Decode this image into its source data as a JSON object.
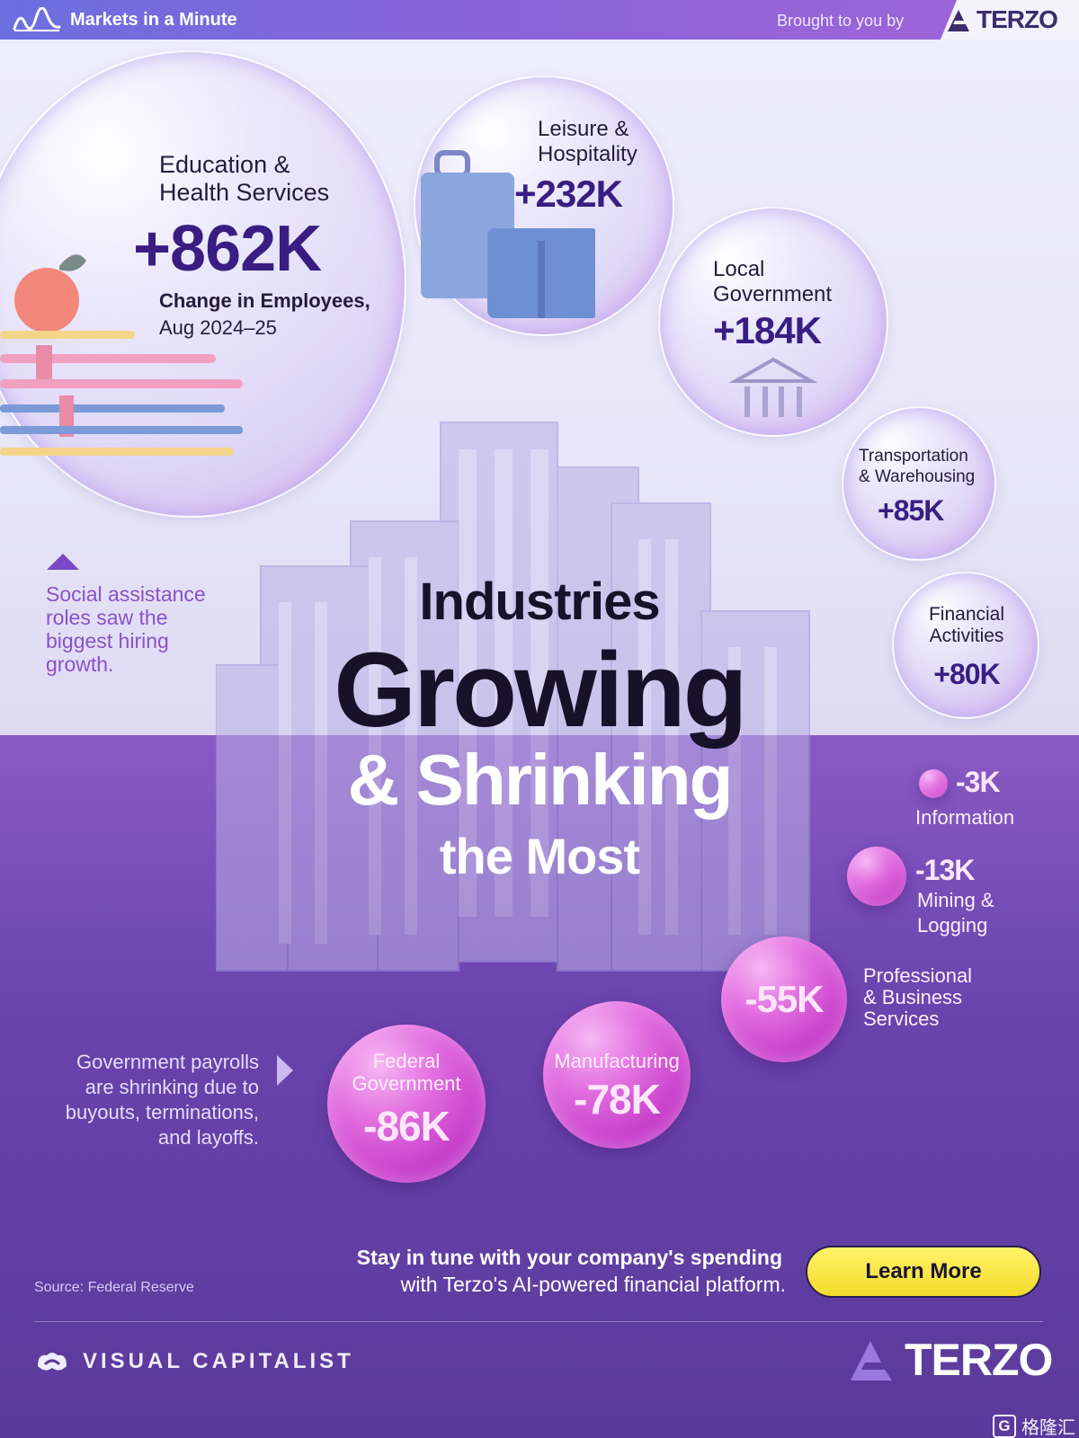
{
  "header": {
    "brand_label": "Markets in a Minute",
    "sponsor_label": "Brought to you by",
    "sponsor_name": "TERZO"
  },
  "title": {
    "line1": "Industries",
    "line2": "Growing",
    "line3": "& Shrinking",
    "line4": "the Most"
  },
  "legend_text": {
    "change_label": "Change in Employees,",
    "period": "Aug 2024–25"
  },
  "notes": {
    "social_assistance": [
      "Social assistance",
      "roles saw the",
      "biggest hiring",
      "growth."
    ],
    "government_payrolls": [
      "Government payrolls",
      "are shrinking due to",
      "buyouts, terminations,",
      "and layoffs."
    ]
  },
  "cta": {
    "line1": "Stay in tune with your company's spending",
    "line2": "with Terzo's AI-powered financial platform.",
    "button_label": "Learn More"
  },
  "source": "Source: Federal Reserve",
  "footer": {
    "publisher": "VISUAL CAPITALIST",
    "sponsor_name": "TERZO",
    "watermark": "格隆汇",
    "watermark_glyph": "G"
  },
  "colors": {
    "positive_value": "#3a1d83",
    "negative_bubble": "#c73fca",
    "cta_button": "#f3dc2a",
    "header_gradient_start": "#6b6fe0",
    "header_gradient_end": "#a064d6"
  },
  "chart_data": {
    "type": "bubble",
    "title": "Industries Growing & Shrinking the Most",
    "unit": "Change in Employees, Aug 2024–25",
    "series": [
      {
        "name": "Education & Health Services",
        "label_lines": [
          "Education &",
          "Health Services"
        ],
        "value": 862,
        "display": "+862K"
      },
      {
        "name": "Leisure & Hospitality",
        "label_lines": [
          "Leisure &",
          "Hospitality"
        ],
        "value": 232,
        "display": "+232K"
      },
      {
        "name": "Local Government",
        "label_lines": [
          "Local",
          "Government"
        ],
        "value": 184,
        "display": "+184K"
      },
      {
        "name": "Transportation & Warehousing",
        "label_lines": [
          "Transportation",
          "& Warehousing"
        ],
        "value": 85,
        "display": "+85K"
      },
      {
        "name": "Financial Activities",
        "label_lines": [
          "Financial",
          "Activities"
        ],
        "value": 80,
        "display": "+80K"
      },
      {
        "name": "Information",
        "label_lines": [
          "Information"
        ],
        "value": -3,
        "display": "-3K"
      },
      {
        "name": "Mining & Logging",
        "label_lines": [
          "Mining &",
          "Logging"
        ],
        "value": -13,
        "display": "-13K"
      },
      {
        "name": "Professional & Business Services",
        "label_lines": [
          "Professional",
          "& Business",
          "Services"
        ],
        "value": -55,
        "display": "-55K"
      },
      {
        "name": "Manufacturing",
        "label_lines": [
          "Manufacturing"
        ],
        "value": -78,
        "display": "-78K"
      },
      {
        "name": "Federal Government",
        "label_lines": [
          "Federal",
          "Government"
        ],
        "value": -86,
        "display": "-86K"
      }
    ]
  }
}
